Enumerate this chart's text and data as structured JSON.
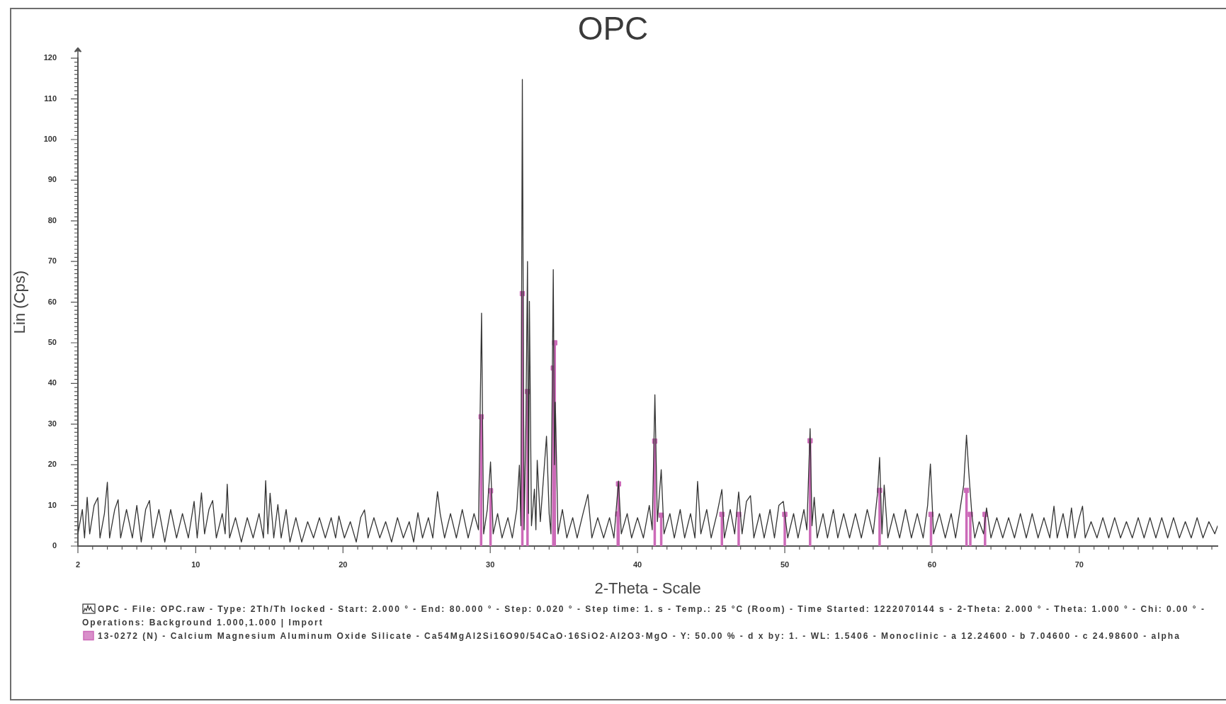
{
  "chart_data": {
    "type": "line",
    "title": "OPC",
    "xlabel": "2-Theta - Scale",
    "ylabel": "Lin (Cps)",
    "xlim": [
      2,
      79.4
    ],
    "ylim": [
      0,
      120
    ],
    "xticks": [
      2,
      {
        "value": 3,
        "label": null
      },
      {
        "value": 4,
        "label": null
      },
      {
        "value": 5,
        "label": null
      },
      {
        "value": 6,
        "label": null
      },
      {
        "value": 7,
        "label": null
      },
      {
        "value": 8,
        "label": null
      },
      {
        "value": 9,
        "label": null
      },
      10,
      {
        "value": 11,
        "label": null
      },
      {
        "value": 12,
        "label": null
      },
      {
        "value": 13,
        "label": null
      },
      {
        "value": 14,
        "label": null
      },
      {
        "value": 15,
        "label": null
      },
      {
        "value": 16,
        "label": null
      },
      {
        "value": 17,
        "label": null
      },
      {
        "value": 18,
        "label": null
      },
      {
        "value": 19,
        "label": null
      },
      20,
      {
        "value": 21,
        "label": null
      },
      {
        "value": 22,
        "label": null
      },
      {
        "value": 23,
        "label": null
      },
      {
        "value": 24,
        "label": null
      },
      {
        "value": 25,
        "label": null
      },
      {
        "value": 26,
        "label": null
      },
      {
        "value": 27,
        "label": null
      },
      {
        "value": 28,
        "label": null
      },
      {
        "value": 29,
        "label": null
      },
      30,
      {
        "value": 31,
        "label": null
      },
      {
        "value": 32,
        "label": null
      },
      {
        "value": 33,
        "label": null
      },
      {
        "value": 34,
        "label": null
      },
      {
        "value": 35,
        "label": null
      },
      {
        "value": 36,
        "label": null
      },
      {
        "value": 37,
        "label": null
      },
      {
        "value": 38,
        "label": null
      },
      {
        "value": 39,
        "label": null
      },
      40,
      {
        "value": 41,
        "label": null
      },
      {
        "value": 42,
        "label": null
      },
      {
        "value": 43,
        "label": null
      },
      {
        "value": 44,
        "label": null
      },
      {
        "value": 45,
        "label": null
      },
      {
        "value": 46,
        "label": null
      },
      {
        "value": 47,
        "label": null
      },
      {
        "value": 48,
        "label": null
      },
      {
        "value": 49,
        "label": null
      },
      50,
      {
        "value": 51,
        "label": null
      },
      {
        "value": 52,
        "label": null
      },
      {
        "value": 53,
        "label": null
      },
      {
        "value": 54,
        "label": null
      },
      {
        "value": 55,
        "label": null
      },
      {
        "value": 56,
        "label": null
      },
      {
        "value": 57,
        "label": null
      },
      {
        "value": 58,
        "label": null
      },
      {
        "value": 59,
        "label": null
      },
      60,
      {
        "value": 61,
        "label": null
      },
      {
        "value": 62,
        "label": null
      },
      {
        "value": 63,
        "label": null
      },
      {
        "value": 64,
        "label": null
      },
      {
        "value": 65,
        "label": null
      },
      {
        "value": 66,
        "label": null
      },
      {
        "value": 67,
        "label": null
      },
      {
        "value": 68,
        "label": null
      },
      {
        "value": 69,
        "label": null
      },
      70,
      {
        "value": 71,
        "label": null
      },
      {
        "value": 72,
        "label": null
      },
      {
        "value": 73,
        "label": null
      },
      {
        "value": 74,
        "label": null
      },
      {
        "value": 75,
        "label": null
      },
      {
        "value": 76,
        "label": null
      },
      {
        "value": 77,
        "label": null
      },
      {
        "value": 78,
        "label": null
      },
      {
        "value": 79,
        "label": null
      }
    ],
    "yticks": [
      0,
      {
        "value": 1,
        "label": null
      },
      {
        "value": 2,
        "label": null
      },
      {
        "value": 3,
        "label": null
      },
      {
        "value": 4,
        "label": null
      },
      {
        "value": 5,
        "label": null
      },
      {
        "value": 6,
        "label": null
      },
      {
        "value": 7,
        "label": null
      },
      {
        "value": 8,
        "label": null
      },
      {
        "value": 9,
        "label": null
      },
      10,
      {
        "value": 11,
        "label": null
      },
      {
        "value": 12,
        "label": null
      },
      {
        "value": 13,
        "label": null
      },
      {
        "value": 14,
        "label": null
      },
      {
        "value": 15,
        "label": null
      },
      {
        "value": 16,
        "label": null
      },
      {
        "value": 17,
        "label": null
      },
      {
        "value": 18,
        "label": null
      },
      {
        "value": 19,
        "label": null
      },
      20,
      {
        "value": 21,
        "label": null
      },
      {
        "value": 22,
        "label": null
      },
      {
        "value": 23,
        "label": null
      },
      {
        "value": 24,
        "label": null
      },
      {
        "value": 25,
        "label": null
      },
      {
        "value": 26,
        "label": null
      },
      {
        "value": 27,
        "label": null
      },
      {
        "value": 28,
        "label": null
      },
      {
        "value": 29,
        "label": null
      },
      30,
      {
        "value": 31,
        "label": null
      },
      {
        "value": 32,
        "label": null
      },
      {
        "value": 33,
        "label": null
      },
      {
        "value": 34,
        "label": null
      },
      {
        "value": 35,
        "label": null
      },
      {
        "value": 36,
        "label": null
      },
      {
        "value": 37,
        "label": null
      },
      {
        "value": 38,
        "label": null
      },
      {
        "value": 39,
        "label": null
      },
      40,
      {
        "value": 41,
        "label": null
      },
      {
        "value": 42,
        "label": null
      },
      {
        "value": 43,
        "label": null
      },
      {
        "value": 44,
        "label": null
      },
      {
        "value": 45,
        "label": null
      },
      {
        "value": 46,
        "label": null
      },
      {
        "value": 47,
        "label": null
      },
      {
        "value": 48,
        "label": null
      },
      {
        "value": 49,
        "label": null
      },
      50,
      {
        "value": 51,
        "label": null
      },
      {
        "value": 52,
        "label": null
      },
      {
        "value": 53,
        "label": null
      },
      {
        "value": 54,
        "label": null
      },
      {
        "value": 55,
        "label": null
      },
      {
        "value": 56,
        "label": null
      },
      {
        "value": 57,
        "label": null
      },
      {
        "value": 58,
        "label": null
      },
      {
        "value": 59,
        "label": null
      },
      60,
      {
        "value": 61,
        "label": null
      },
      {
        "value": 62,
        "label": null
      },
      {
        "value": 63,
        "label": null
      },
      {
        "value": 64,
        "label": null
      },
      {
        "value": 65,
        "label": null
      },
      {
        "value": 66,
        "label": null
      },
      {
        "value": 67,
        "label": null
      },
      {
        "value": 68,
        "label": null
      },
      {
        "value": 69,
        "label": null
      },
      70,
      {
        "value": 71,
        "label": null
      },
      {
        "value": 72,
        "label": null
      },
      {
        "value": 73,
        "label": null
      },
      {
        "value": 74,
        "label": null
      },
      {
        "value": 75,
        "label": null
      },
      {
        "value": 76,
        "label": null
      },
      {
        "value": 77,
        "label": null
      },
      {
        "value": 78,
        "label": null
      },
      {
        "value": 79,
        "label": null
      },
      80,
      {
        "value": 81,
        "label": null
      },
      {
        "value": 82,
        "label": null
      },
      {
        "value": 83,
        "label": null
      },
      {
        "value": 84,
        "label": null
      },
      {
        "value": 85,
        "label": null
      },
      {
        "value": 86,
        "label": null
      },
      {
        "value": 87,
        "label": null
      },
      {
        "value": 88,
        "label": null
      },
      {
        "value": 89,
        "label": null
      },
      90,
      {
        "value": 91,
        "label": null
      },
      {
        "value": 92,
        "label": null
      },
      {
        "value": 93,
        "label": null
      },
      {
        "value": 94,
        "label": null
      },
      {
        "value": 95,
        "label": null
      },
      {
        "value": 96,
        "label": null
      },
      {
        "value": 97,
        "label": null
      },
      {
        "value": 98,
        "label": null
      },
      {
        "value": 99,
        "label": null
      },
      100,
      {
        "value": 101,
        "label": null
      },
      {
        "value": 102,
        "label": null
      },
      {
        "value": 103,
        "label": null
      },
      {
        "value": 104,
        "label": null
      },
      {
        "value": 105,
        "label": null
      },
      {
        "value": 106,
        "label": null
      },
      {
        "value": 107,
        "label": null
      },
      {
        "value": 108,
        "label": null
      },
      {
        "value": 109,
        "label": null
      },
      110,
      {
        "value": 111,
        "label": null
      },
      {
        "value": 112,
        "label": null
      },
      {
        "value": 113,
        "label": null
      },
      {
        "value": 114,
        "label": null
      },
      {
        "value": 115,
        "label": null
      },
      {
        "value": 116,
        "label": null
      },
      {
        "value": 117,
        "label": null
      },
      {
        "value": 118,
        "label": null
      },
      {
        "value": 119,
        "label": null
      },
      120
    ],
    "grid": false,
    "legend": "bottom",
    "series": [
      {
        "name": "OPC - File: OPC.raw - Type: 2Th/Th locked - Start: 2.000 ° - End: 80.000 ° - Step: 0.020 ° - Step time: 1. s - Temp.: 25 °C (Room) - Time Started: 1222070144 s - 2-Theta: 2.000 ° - Theta: 1.000 ° - Chi: 0.00 ° - Operations: Background 1.000,1.000 | Import",
        "color": "#333333",
        "x": [
          2.0,
          2.3,
          2.45,
          2.63,
          2.8,
          3.1,
          3.35,
          3.5,
          3.8,
          4.0,
          4.15,
          4.5,
          4.73,
          4.9,
          5.3,
          5.7,
          6.0,
          6.3,
          6.6,
          6.86,
          7.1,
          7.5,
          7.9,
          8.3,
          8.7,
          9.1,
          9.5,
          9.89,
          10.1,
          10.39,
          10.6,
          10.9,
          11.15,
          11.4,
          11.8,
          12.0,
          12.14,
          12.3,
          12.7,
          13.1,
          13.5,
          13.9,
          14.3,
          14.6,
          14.75,
          14.9,
          15.05,
          15.3,
          15.58,
          15.8,
          16.14,
          16.4,
          16.8,
          17.2,
          17.6,
          18.0,
          18.4,
          18.8,
          19.2,
          19.5,
          19.72,
          20.1,
          20.5,
          20.9,
          21.2,
          21.46,
          21.7,
          22.1,
          22.5,
          22.9,
          23.3,
          23.7,
          24.1,
          24.5,
          24.8,
          25.09,
          25.4,
          25.8,
          26.1,
          26.42,
          26.6,
          26.9,
          27.3,
          27.7,
          28.1,
          28.5,
          28.9,
          29.2,
          29.41,
          29.55,
          29.8,
          30.02,
          30.2,
          30.5,
          30.8,
          31.2,
          31.5,
          31.8,
          31.98,
          32.08,
          32.18,
          32.3,
          32.42,
          32.53,
          32.6,
          32.66,
          32.8,
          33.0,
          33.1,
          33.19,
          33.4,
          33.6,
          33.82,
          34.0,
          34.12,
          34.28,
          34.36,
          34.42,
          34.6,
          34.9,
          35.2,
          35.6,
          35.9,
          36.3,
          36.63,
          36.9,
          37.3,
          37.7,
          38.1,
          38.4,
          38.71,
          38.9,
          39.3,
          39.6,
          40.0,
          40.4,
          40.8,
          41.0,
          41.18,
          41.35,
          41.61,
          41.8,
          42.2,
          42.5,
          42.9,
          43.2,
          43.6,
          43.9,
          44.08,
          44.3,
          44.7,
          45.0,
          45.4,
          45.73,
          45.9,
          46.3,
          46.6,
          46.87,
          47.1,
          47.4,
          47.67,
          47.9,
          48.3,
          48.6,
          49.0,
          49.3,
          49.6,
          49.9,
          50.2,
          50.6,
          50.9,
          51.3,
          51.5,
          51.72,
          51.85,
          52.0,
          52.2,
          52.6,
          52.9,
          53.3,
          53.6,
          54.0,
          54.4,
          54.8,
          55.2,
          55.6,
          56.0,
          56.3,
          56.44,
          56.6,
          56.75,
          57.0,
          57.4,
          57.8,
          58.2,
          58.6,
          59.0,
          59.4,
          59.7,
          59.89,
          60.1,
          60.5,
          60.9,
          61.3,
          61.6,
          61.9,
          62.15,
          62.34,
          62.5,
          62.7,
          62.9,
          63.2,
          63.5,
          63.7,
          64.0,
          64.4,
          64.8,
          65.2,
          65.6,
          66.0,
          66.4,
          66.8,
          67.2,
          67.6,
          68.0,
          68.28,
          68.5,
          68.9,
          69.2,
          69.47,
          69.7,
          70.0,
          70.22,
          70.4,
          70.8,
          71.2,
          71.6,
          72.0,
          72.4,
          72.8,
          73.2,
          73.6,
          74.0,
          74.4,
          74.8,
          75.2,
          75.6,
          76.0,
          76.4,
          76.8,
          77.2,
          77.6,
          78.0,
          78.4,
          78.8,
          79.2,
          79.4
        ],
        "values": [
          3,
          9,
          2,
          12,
          3,
          10,
          11.9,
          2,
          8,
          15.7,
          2,
          9,
          11.4,
          2,
          9,
          2,
          10,
          1,
          9,
          11.2,
          2,
          9,
          1,
          9,
          2,
          8,
          2,
          11,
          2,
          13.1,
          3,
          9,
          11.2,
          2,
          8,
          3,
          15.2,
          2,
          7,
          1,
          7,
          2,
          8,
          2,
          16.1,
          3,
          13,
          2,
          10.2,
          2,
          9,
          1,
          7,
          1,
          6,
          2,
          7,
          2,
          7,
          2,
          7.4,
          2,
          6,
          1,
          7,
          8.9,
          2,
          7,
          2,
          6,
          1,
          7,
          2,
          6,
          1,
          8.2,
          2,
          7,
          2,
          13.4,
          8,
          2,
          8,
          2,
          9,
          2,
          8,
          4,
          57.3,
          3,
          9,
          20.7,
          3,
          8,
          2,
          7,
          2,
          9,
          19.9,
          5,
          114.8,
          4,
          30,
          70,
          8,
          60.2,
          5,
          14,
          4,
          21.1,
          6,
          16,
          27,
          8,
          3,
          68,
          20,
          35.4,
          3,
          9,
          2,
          7,
          2,
          8,
          12.7,
          2,
          7,
          2,
          7,
          2,
          16,
          3,
          8,
          2,
          7,
          2,
          10,
          4,
          37.2,
          6,
          18.8,
          3,
          8,
          2,
          9,
          2,
          8,
          2,
          15.9,
          3,
          9,
          2,
          8,
          13.9,
          2,
          9,
          3,
          13.3,
          3,
          11,
          12.4,
          2,
          8,
          2,
          9,
          2,
          10,
          11,
          2,
          8,
          2,
          9,
          4,
          28.9,
          5,
          12,
          2,
          8,
          2,
          9,
          2,
          8,
          2,
          8,
          2,
          9,
          3,
          13,
          21.8,
          3,
          15,
          2,
          8,
          2,
          9,
          2,
          8,
          2,
          10,
          20.2,
          3,
          8,
          2,
          8,
          2,
          9,
          15,
          27.3,
          18,
          8,
          2,
          6,
          3,
          9.4,
          2,
          7,
          2,
          7,
          2,
          8,
          2,
          8,
          2,
          7,
          2,
          9.8,
          2,
          8,
          2,
          9.4,
          2,
          7,
          9.8,
          2,
          6,
          2,
          7,
          2,
          7,
          2,
          6,
          2,
          7,
          2,
          7,
          2,
          7,
          2,
          7,
          2,
          6,
          2,
          7,
          2,
          6,
          3,
          5
        ]
      },
      {
        "name": "13-0272 (N) - Calcium Magnesium Aluminum Oxide Silicate - Ca54MgAl2Si16O90/54CaO·16SiO2·Al2O3·MgO - Y: 50.00 % - d x by: 1. - WL: 1.5406 - Monoclinic - a 12.24600 - b 7.04600 - c 24.98600 - alpha",
        "color": "#cc6ab8",
        "type": "lollipop",
        "marker": "square",
        "x": [
          29.38,
          30.02,
          32.18,
          32.53,
          34.28,
          34.38,
          38.66,
          38.71,
          41.17,
          41.61,
          45.73,
          46.87,
          50.0,
          51.72,
          56.44,
          59.93,
          62.34,
          62.6,
          63.6
        ],
        "values": [
          31.8,
          13.6,
          62.1,
          38.0,
          43.8,
          50.0,
          7.9,
          15.3,
          25.8,
          7.6,
          7.8,
          7.8,
          7.8,
          25.9,
          13.7,
          7.8,
          13.7,
          7.8,
          7.8
        ]
      }
    ]
  }
}
